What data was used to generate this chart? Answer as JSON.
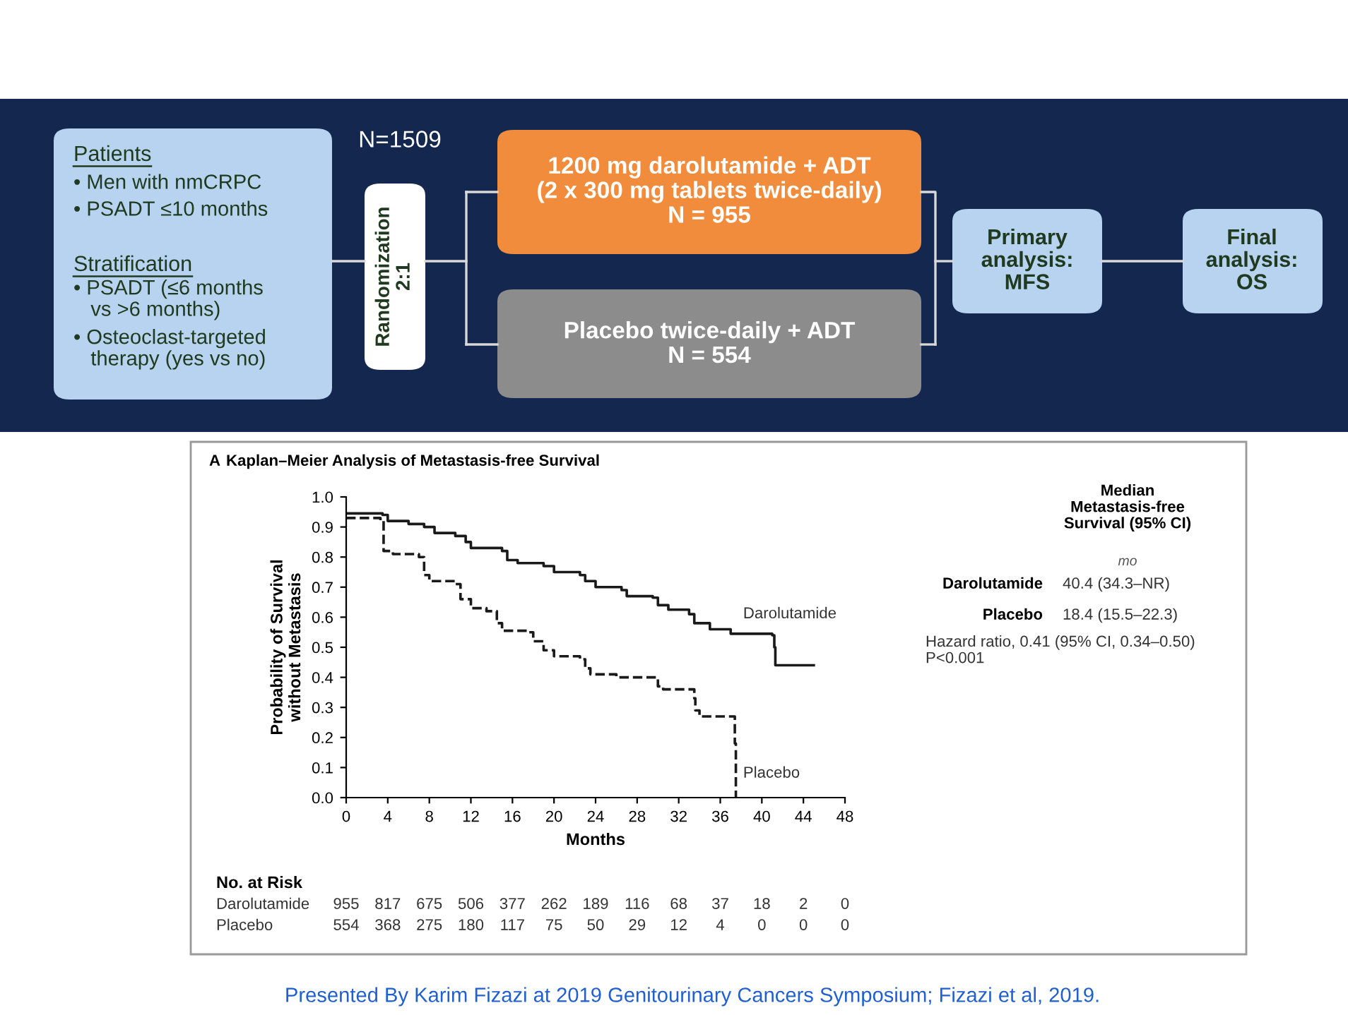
{
  "chart_data": {
    "type": "step",
    "title": "Kaplan–Meier Analysis of Metastasis-free Survival",
    "xlabel": "Months",
    "ylabel": "Probability of Survival\nwithout Metastasis",
    "xlim": [
      0,
      48
    ],
    "xticks": [
      0,
      4,
      8,
      12,
      16,
      20,
      24,
      28,
      32,
      36,
      40,
      44,
      48
    ],
    "ylim": [
      0,
      1
    ],
    "yticks": [
      {
        "value": 0,
        "label": "0.0"
      },
      {
        "value": 0.1,
        "label": "0.1"
      },
      {
        "value": 0.2,
        "label": "0.2"
      },
      {
        "value": 0.3,
        "label": "0.3"
      },
      {
        "value": 0.4,
        "label": "0.4"
      },
      {
        "value": 0.5,
        "label": "0.5"
      },
      {
        "value": 0.6,
        "label": "0.6"
      },
      {
        "value": 0.7,
        "label": "0.7"
      },
      {
        "value": 0.8,
        "label": "0.8"
      },
      {
        "value": 0.9,
        "label": "0.9"
      },
      {
        "value": 1,
        "label": "1.0"
      }
    ],
    "grid": false,
    "legend": false,
    "marker": "none",
    "series": [
      {
        "name": "Darolutamide",
        "color": "#1a1a1a",
        "line_style": "solid",
        "x": [
          0,
          3.5,
          4,
          6,
          7.5,
          8.5,
          10.5,
          11.5,
          12,
          15,
          15.5,
          16.5,
          19,
          20,
          22.5,
          23,
          24,
          26.5,
          27,
          29.5,
          30,
          31,
          33,
          33.5,
          35,
          37,
          41,
          41.2,
          41.3,
          45
        ],
        "values": [
          0.945,
          0.94,
          0.92,
          0.91,
          0.9,
          0.88,
          0.87,
          0.85,
          0.83,
          0.82,
          0.79,
          0.78,
          0.77,
          0.75,
          0.74,
          0.72,
          0.7,
          0.69,
          0.67,
          0.665,
          0.64,
          0.625,
          0.61,
          0.58,
          0.56,
          0.545,
          0.54,
          0.5,
          0.44,
          0.44
        ]
      },
      {
        "name": "Placebo",
        "color": "#1a1a1a",
        "line_style": "dashed",
        "x": [
          0,
          3.3,
          3.6,
          4.5,
          7,
          7.5,
          8,
          10.5,
          11,
          12,
          13.5,
          14.5,
          15,
          17.5,
          18,
          19,
          20,
          22.5,
          23,
          23.5,
          26,
          29.5,
          30,
          30.5,
          33.5,
          33.6,
          34,
          37.3,
          37.4,
          37.5
        ],
        "values": [
          0.93,
          0.92,
          0.82,
          0.81,
          0.8,
          0.74,
          0.72,
          0.71,
          0.66,
          0.63,
          0.62,
          0.58,
          0.555,
          0.55,
          0.52,
          0.49,
          0.47,
          0.46,
          0.43,
          0.41,
          0.4,
          0.4,
          0.37,
          0.36,
          0.33,
          0.29,
          0.27,
          0.27,
          0.18,
          0
        ]
      }
    ],
    "annotations": [
      "N=1509",
      "Patients",
      "• Men with nmCRPC",
      "• PSADT ≤10 months",
      "Stratification",
      "• PSADT (≤6 months\n   vs >6 months)",
      "• Osteoclast-targeted\n   therapy (yes vs no)",
      "Randomization\n2:1",
      "1200 mg darolutamide + ADT\n(2 x 300 mg tablets twice-daily)\nN = 955",
      "Placebo twice-daily + ADT\nN = 554",
      "Primary\nanalysis:\nMFS",
      "Final\nanalysis:\nOS",
      "A",
      "Median\nMetastasis-free\nSurvival (95% CI)",
      "mo",
      "Darolutamide",
      "40.4 (34.3–NR)",
      "Placebo",
      "18.4 (15.5–22.3)",
      "Hazard ratio, 0.41 (95% CI, 0.34–0.50)\nP<0.001",
      "No. at Risk",
      "Darolutamide",
      "955 817 675 506 377 262 189 116 68 37 18 2 0",
      "Placebo",
      "554 368 275 180 117 75 50 29 12 4 0 0 0",
      "Presented By Karim Fizazi at 2019 Genitourinary Cancers Symposium; Fizazi et al, 2019."
    ]
  }
}
